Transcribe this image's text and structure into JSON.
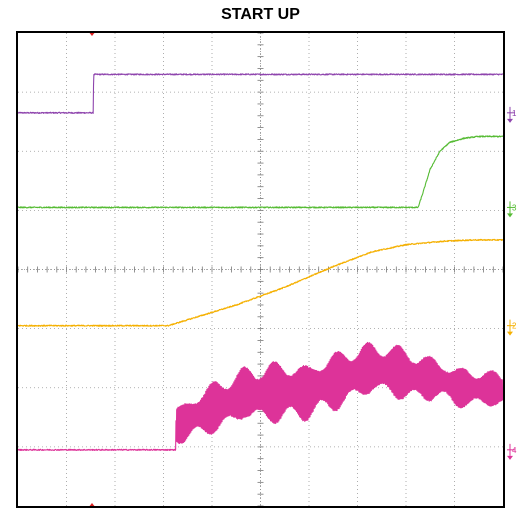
{
  "chart_data": {
    "type": "line",
    "title": "START UP",
    "grid": true,
    "divisions": {
      "x": 10,
      "y": 8
    },
    "xlim": [
      0,
      10
    ],
    "ylim": [
      0,
      8
    ],
    "series": [
      {
        "channel": "1",
        "color": "#8e44ad",
        "marker": "1",
        "marker_level": 6.65,
        "x": [
          0,
          1.55,
          1.56,
          10
        ],
        "y": [
          6.65,
          6.65,
          7.3,
          7.3
        ],
        "noise": 0.02
      },
      {
        "channel": "3",
        "color": "#55bb33",
        "marker": "3",
        "marker_level": 5.05,
        "x": [
          0,
          8.25,
          8.35,
          8.5,
          8.7,
          8.9,
          9.2,
          9.5,
          10
        ],
        "y": [
          5.05,
          5.05,
          5.3,
          5.7,
          6.0,
          6.15,
          6.22,
          6.25,
          6.25
        ],
        "noise": 0.02
      },
      {
        "channel": "2",
        "color": "#f5b000",
        "marker": "2",
        "marker_level": 3.05,
        "x": [
          0,
          3.1,
          3.5,
          4.5,
          5.5,
          6.5,
          7.3,
          8.0,
          8.8,
          9.4,
          10
        ],
        "y": [
          3.05,
          3.05,
          3.15,
          3.4,
          3.7,
          4.05,
          4.3,
          4.42,
          4.48,
          4.5,
          4.5
        ],
        "noise": 0.02
      },
      {
        "channel": "4",
        "color": "#dd3399",
        "marker": "4",
        "marker_level": 0.95,
        "x": [
          0,
          3.25,
          3.26,
          4.0,
          5.0,
          6.0,
          7.0,
          7.6,
          8.2,
          8.6,
          9.0,
          10
        ],
        "y": [
          0.95,
          0.95,
          1.45,
          1.65,
          1.85,
          2.05,
          2.2,
          2.25,
          2.2,
          2.25,
          2.05,
          1.9
        ],
        "ripple": [
          0,
          0,
          0.4,
          0.5,
          0.6,
          0.6,
          0.55,
          0.55,
          0.5,
          0.45,
          0.4,
          0.35
        ],
        "noise": 0.02
      }
    ]
  }
}
